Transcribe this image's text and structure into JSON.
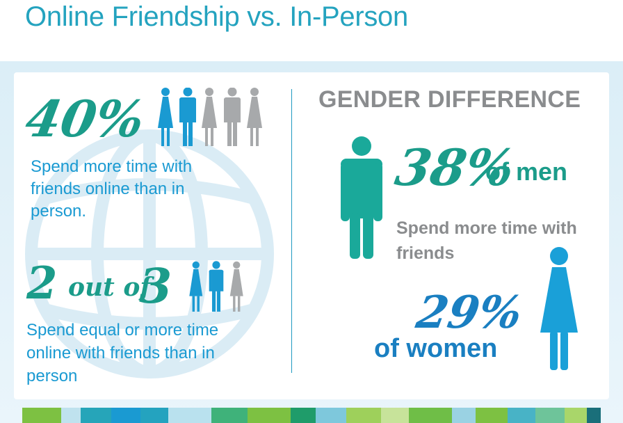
{
  "title": "Online Friendship vs. In-Person",
  "left": {
    "stat1": {
      "value": "40%",
      "text": "Spend more time with friends online than in person."
    },
    "stat2": {
      "two": "2",
      "out_of": "out of",
      "three": "3",
      "text": "Spend equal or more time online with friends than in person"
    }
  },
  "right": {
    "heading": "GENDER DIFFERENCE",
    "men_value": "38%",
    "men_label": "of men",
    "shared_text": "Spend more time with friends",
    "women_value": "29%",
    "women_label": "of women"
  },
  "colors": {
    "title": "#24a3bf",
    "teal": "#1b9c8a",
    "blue": "#1a9ad2",
    "dark_blue": "#1a7fc1",
    "gray": "#8a8c8e",
    "figure_gray": "#a7a9ab",
    "figure_teal": "#1aa99a"
  },
  "icons": [
    "globe-icon",
    "woman-icon",
    "man-icon"
  ]
}
